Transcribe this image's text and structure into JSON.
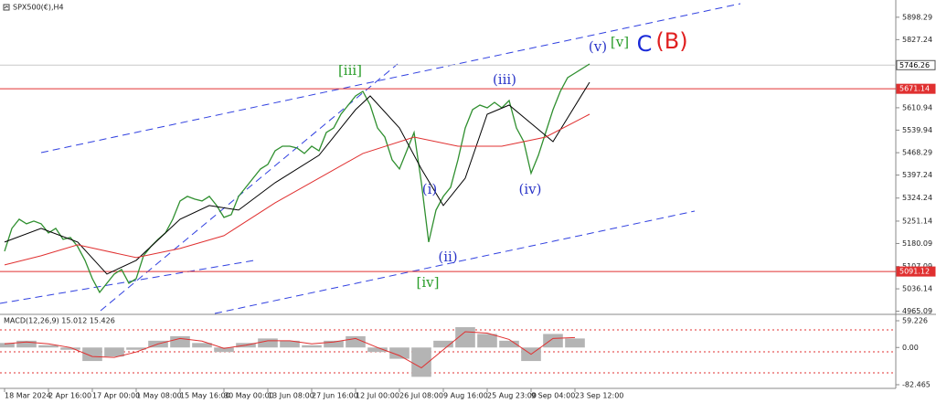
{
  "chart_data": {
    "type": "line",
    "title": "SPX500(€),H4",
    "xlim": [
      -0.625,
      121.875
    ],
    "ylim": [
      4958,
      5953
    ],
    "yticks": [
      5898.29,
      5827.24,
      5610.94,
      5539.94,
      5468.29,
      5397.24,
      5324.24,
      5251.14,
      5180.09,
      5107.09,
      5036.14,
      4965.09
    ],
    "xticks": [
      {
        "value": 0,
        "label": "18 Mar 2024"
      },
      {
        "value": 6,
        "label": "2 Apr 16:00"
      },
      {
        "value": 12,
        "label": "17 Apr 00:00"
      },
      {
        "value": 18,
        "label": "1 May 08:00"
      },
      {
        "value": 24,
        "label": "15 May 16:00"
      },
      {
        "value": 30,
        "label": "30 May 00:00"
      },
      {
        "value": 36,
        "label": "13 Jun 08:00"
      },
      {
        "value": 42,
        "label": "27 Jun 16:00"
      },
      {
        "value": 48,
        "label": "12 Jul 00:00"
      },
      {
        "value": 54,
        "label": "26 Jul 08:00"
      },
      {
        "value": 60,
        "label": "9 Aug 16:00"
      },
      {
        "value": 66,
        "label": "25 Aug 23:00"
      },
      {
        "value": 72,
        "label": "9 Sep 04:00"
      },
      {
        "value": 78,
        "label": "23 Sep 12:00"
      }
    ],
    "series": [
      {
        "color": "#2f8f2f",
        "x": [
          0,
          1,
          2,
          3,
          4,
          5,
          6,
          7,
          8,
          9,
          10,
          11,
          12,
          13,
          14,
          15,
          16,
          17,
          18,
          19,
          20,
          21,
          22,
          23,
          24,
          25,
          26,
          27,
          28,
          29,
          30,
          31,
          32,
          33,
          34,
          35,
          36,
          37,
          38,
          39,
          40,
          41,
          42,
          43,
          44,
          45,
          46,
          47,
          48,
          49,
          50,
          51,
          52,
          53,
          54,
          55,
          56,
          57,
          58,
          59,
          60,
          61,
          62,
          63,
          64,
          65,
          66,
          67,
          68,
          69,
          70,
          71,
          72,
          73,
          74,
          75,
          76,
          77,
          78,
          79,
          80
        ],
        "values": [
          5155.5,
          5228,
          5257,
          5242.5,
          5251.2,
          5242.5,
          5213.5,
          5228,
          5193.2,
          5199,
          5170,
          5126.5,
          5068.5,
          5025,
          5054,
          5083,
          5097.5,
          5054,
          5068.5,
          5141,
          5170,
          5193.2,
          5213.5,
          5257,
          5315,
          5329.5,
          5320.8,
          5315,
          5329.5,
          5300.5,
          5262.8,
          5271.5,
          5329.5,
          5358.5,
          5387.5,
          5416.5,
          5431,
          5474.5,
          5489,
          5489,
          5483.2,
          5465.8,
          5489,
          5474.5,
          5532.5,
          5547,
          5590.5,
          5619.5,
          5648.5,
          5663,
          5619.5,
          5547,
          5518,
          5445.5,
          5416.5,
          5474.5,
          5532.5,
          5373,
          5184.5,
          5286,
          5329.5,
          5358.5,
          5445.5,
          5547,
          5605,
          5619.5,
          5610.8,
          5628.2,
          5610.8,
          5634,
          5547,
          5503.5,
          5402.9,
          5460,
          5532.5,
          5605,
          5663,
          5706.5,
          5721,
          5735.5,
          5750
        ]
      },
      {
        "color": "#000000",
        "x": [
          0,
          5,
          10,
          14,
          18,
          24,
          28,
          32,
          37,
          43,
          48,
          50,
          54,
          57,
          60,
          63,
          66,
          69,
          72,
          75,
          80
        ],
        "values": [
          5184.5,
          5228,
          5184.5,
          5083,
          5126.5,
          5257,
          5300.5,
          5286,
          5373,
          5460,
          5605,
          5648.5,
          5547,
          5416.5,
          5300.5,
          5387.5,
          5590.5,
          5619.5,
          5561.5,
          5503.5,
          5692
        ]
      },
      {
        "color": "#e03030",
        "x": [
          0,
          5,
          10,
          18,
          24,
          30,
          37,
          43,
          49,
          56,
          62,
          68,
          74,
          80
        ],
        "values": [
          5112,
          5141,
          5175.8,
          5135.2,
          5164.2,
          5204.8,
          5309.2,
          5387.5,
          5465.8,
          5518,
          5489,
          5489,
          5518,
          5590.5
        ]
      }
    ],
    "levels": [
      {
        "value": 5746.26,
        "color": "#c8c8c8"
      },
      {
        "value": 5671.14,
        "color": "#e03030"
      },
      {
        "value": 5091.12,
        "color": "#e03030"
      }
    ],
    "annotations": [
      {
        "text": "[iii]",
        "color": "#2a9d2a"
      },
      {
        "text": "[iv]",
        "color": "#2a9d2a"
      },
      {
        "text": "[v]",
        "color": "#2a9d2a"
      },
      {
        "text": "(v)",
        "color": "#2a35c8"
      },
      {
        "text": "C",
        "color": "#1a2ad8"
      },
      {
        "text": "(B)",
        "color": "#e02020"
      },
      {
        "text": "(iii)",
        "color": "#2a35c8"
      },
      {
        "text": "(i)",
        "color": "#2a35c8"
      },
      {
        "text": "(ii)",
        "color": "#2a35c8"
      },
      {
        "text": "(iv)",
        "color": "#2a35c8"
      }
    ],
    "macd": {
      "title": "MACD(12,26,9) 15.012 15.426",
      "ylim": [
        -90.6,
        71.4
      ],
      "yticks": [
        59.226,
        {
          "value": 0,
          "label": "0.00"
        },
        -82.465
      ],
      "x": [
        0,
        3,
        6,
        9,
        12,
        15,
        18,
        21,
        24,
        27,
        30,
        33,
        36,
        39,
        42,
        45,
        48,
        51,
        54,
        57,
        60,
        63,
        66,
        69,
        72,
        75,
        78
      ],
      "histogram": [
        10,
        15,
        5,
        -5,
        -30,
        -20,
        -5,
        15,
        25,
        10,
        -10,
        10,
        20,
        15,
        5,
        15,
        25,
        -10,
        -25,
        -65,
        15,
        45,
        30,
        15,
        -30,
        30,
        20
      ],
      "signal": [
        8,
        12,
        8,
        0,
        -20,
        -22,
        -10,
        8,
        20,
        14,
        -2,
        5,
        15,
        15,
        8,
        12,
        20,
        0,
        -18,
        -45,
        -5,
        35,
        32,
        18,
        -15,
        20,
        22
      ],
      "histogram_color": "#b4b4b4",
      "signal_color": "#e03030"
    }
  }
}
